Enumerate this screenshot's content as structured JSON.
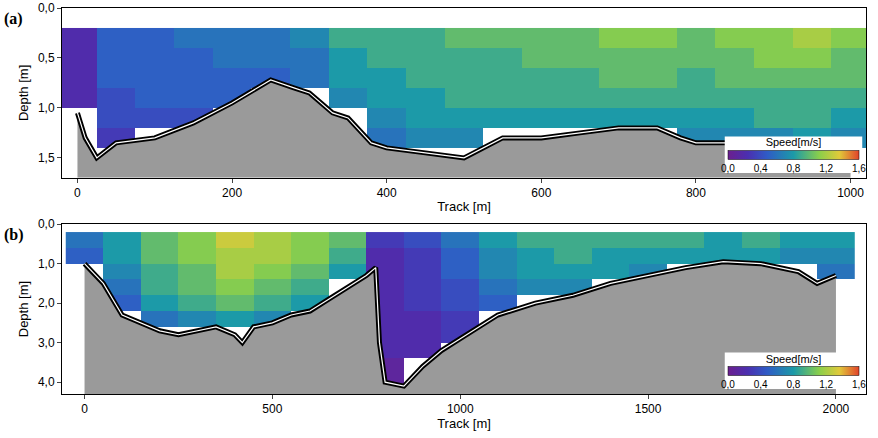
{
  "chart_data": [
    {
      "type": "heatmap",
      "label": "(a)",
      "x_label": "Track [m]",
      "y_label": "Depth [m]",
      "grid": false,
      "x": [
        0,
        50,
        100,
        150,
        200,
        250,
        300,
        350,
        400,
        450,
        500,
        550,
        600,
        650,
        700,
        750,
        800,
        850,
        900,
        950,
        1000
      ],
      "y": [
        0.3,
        0.5,
        0.7,
        0.9,
        1.1,
        1.3
      ],
      "cells": [
        [
          0.2,
          0.2,
          0.2,
          0.2,
          null,
          null
        ],
        [
          0.5,
          0.5,
          0.5,
          0.4,
          0.4,
          0.3
        ],
        [
          0.5,
          0.5,
          0.5,
          0.5,
          0.4,
          null
        ],
        [
          0.6,
          0.5,
          0.5,
          0.5,
          0.4,
          null
        ],
        [
          0.6,
          0.6,
          0.5,
          0.5,
          null,
          null
        ],
        [
          0.6,
          0.6,
          0.5,
          null,
          null,
          null
        ],
        [
          0.7,
          0.6,
          0.6,
          null,
          null,
          null
        ],
        [
          0.9,
          0.8,
          0.8,
          0.7,
          null,
          null
        ],
        [
          0.9,
          0.9,
          0.8,
          0.8,
          0.7,
          0.6
        ],
        [
          0.9,
          0.9,
          0.9,
          0.8,
          0.8,
          0.7
        ],
        [
          1.0,
          0.9,
          0.9,
          0.9,
          0.8,
          0.7
        ],
        [
          1.0,
          0.9,
          0.9,
          0.9,
          0.8,
          null
        ],
        [
          1.0,
          1.0,
          0.9,
          0.9,
          0.8,
          null
        ],
        [
          1.0,
          1.0,
          0.9,
          0.9,
          0.8,
          null
        ],
        [
          1.1,
          1.0,
          1.0,
          0.9,
          0.8,
          null
        ],
        [
          1.1,
          1.0,
          1.0,
          0.9,
          0.8,
          null
        ],
        [
          1.0,
          1.0,
          0.9,
          0.9,
          0.8,
          0.7
        ],
        [
          1.1,
          1.0,
          1.0,
          0.9,
          0.8,
          0.7
        ],
        [
          1.1,
          1.1,
          1.0,
          0.9,
          0.9,
          0.7
        ],
        [
          1.2,
          1.1,
          1.0,
          0.9,
          0.9,
          0.8
        ],
        [
          1.1,
          1.0,
          1.0,
          0.9,
          0.8,
          0.7
        ]
      ],
      "bed": {
        "x": [
          0,
          10,
          25,
          50,
          100,
          150,
          200,
          250,
          280,
          300,
          330,
          350,
          380,
          400,
          450,
          500,
          550,
          600,
          650,
          700,
          750,
          780,
          800,
          850,
          900,
          950,
          1000
        ],
        "depth": [
          1.05,
          1.3,
          1.5,
          1.35,
          1.3,
          1.15,
          0.95,
          0.72,
          0.8,
          0.85,
          1.05,
          1.1,
          1.35,
          1.4,
          1.45,
          1.5,
          1.3,
          1.3,
          1.25,
          1.2,
          1.2,
          1.3,
          1.35,
          1.35,
          1.35,
          1.35,
          1.35
        ]
      },
      "xlim": [
        -20,
        1020
      ],
      "ylim": [
        0,
        1.7
      ],
      "xticks": [
        0,
        200,
        400,
        600,
        800,
        1000
      ],
      "yticks": [
        {
          "value": 0,
          "label": "0,0"
        },
        {
          "value": 0.5,
          "label": "0,5"
        },
        {
          "value": 1.0,
          "label": "1,0"
        },
        {
          "value": 1.5,
          "label": "1,5"
        }
      ],
      "colorbar": {
        "title": "Speed[m/s]",
        "range": [
          0,
          1.6
        ],
        "ticks": [
          {
            "value": 0,
            "label": "0,0"
          },
          {
            "value": 0.4,
            "label": "0,4"
          },
          {
            "value": 0.8,
            "label": "0,8"
          },
          {
            "value": 1.2,
            "label": "1,2"
          },
          {
            "value": 1.6,
            "label": "1,6"
          }
        ]
      }
    },
    {
      "type": "heatmap",
      "label": "(b)",
      "x_label": "Track [m]",
      "y_label": "Depth [m]",
      "grid": false,
      "x": [
        0,
        100,
        200,
        300,
        400,
        500,
        600,
        700,
        800,
        900,
        1000,
        1100,
        1200,
        1300,
        1400,
        1500,
        1600,
        1700,
        1800,
        1900,
        2000
      ],
      "y": [
        0.4,
        0.8,
        1.2,
        1.6,
        2.0,
        2.4,
        2.8,
        3.2,
        3.6,
        4.0
      ],
      "cells": [
        [
          0.6,
          0.5,
          null,
          null,
          null,
          null,
          null,
          null,
          null,
          null
        ],
        [
          0.8,
          0.8,
          0.7,
          0.6,
          0.5,
          null,
          null,
          null,
          null,
          null
        ],
        [
          1.0,
          1.0,
          0.9,
          0.9,
          0.8,
          0.6,
          null,
          null,
          null,
          null
        ],
        [
          1.1,
          1.1,
          1.0,
          1.0,
          0.9,
          0.7,
          null,
          null,
          null,
          null
        ],
        [
          1.3,
          1.2,
          1.2,
          1.1,
          1.0,
          0.8,
          null,
          null,
          null,
          null
        ],
        [
          1.2,
          1.2,
          1.1,
          1.0,
          0.9,
          0.7,
          null,
          null,
          null,
          null
        ],
        [
          1.1,
          1.1,
          1.0,
          0.9,
          0.8,
          null,
          null,
          null,
          null,
          null
        ],
        [
          1.0,
          0.9,
          0.8,
          null,
          null,
          null,
          null,
          null,
          null,
          null
        ],
        [
          0.3,
          0.2,
          0.2,
          0.2,
          0.2,
          0.2,
          0.2,
          0.2,
          0.1,
          0.1
        ],
        [
          0.4,
          0.3,
          0.3,
          0.3,
          0.3,
          0.2,
          0.2,
          0.2,
          null,
          null
        ],
        [
          0.6,
          0.5,
          0.5,
          0.4,
          0.4,
          0.3,
          0.3,
          null,
          null,
          null
        ],
        [
          0.8,
          0.7,
          0.7,
          0.6,
          0.5,
          null,
          null,
          null,
          null,
          null
        ],
        [
          0.9,
          0.8,
          0.8,
          0.7,
          null,
          null,
          null,
          null,
          null,
          null
        ],
        [
          0.9,
          0.9,
          0.8,
          0.7,
          null,
          null,
          null,
          null,
          null,
          null
        ],
        [
          0.9,
          0.8,
          0.8,
          null,
          null,
          null,
          null,
          null,
          null,
          null
        ],
        [
          0.9,
          0.8,
          0.7,
          null,
          null,
          null,
          null,
          null,
          null,
          null
        ],
        [
          0.9,
          0.8,
          null,
          null,
          null,
          null,
          null,
          null,
          null,
          null
        ],
        [
          0.8,
          0.8,
          null,
          null,
          null,
          null,
          null,
          null,
          null,
          null
        ],
        [
          0.9,
          0.8,
          null,
          null,
          null,
          null,
          null,
          null,
          null,
          null
        ],
        [
          0.8,
          0.7,
          null,
          null,
          null,
          null,
          null,
          null,
          null,
          null
        ],
        [
          0.8,
          0.7,
          0.6,
          null,
          null,
          null,
          null,
          null,
          null,
          null
        ]
      ],
      "bed": {
        "x": [
          0,
          50,
          100,
          150,
          200,
          250,
          300,
          350,
          400,
          420,
          450,
          500,
          550,
          600,
          650,
          700,
          750,
          775,
          785,
          800,
          850,
          900,
          950,
          1000,
          1050,
          1100,
          1200,
          1300,
          1400,
          1500,
          1600,
          1700,
          1800,
          1900,
          1950,
          2000
        ],
        "depth": [
          1.0,
          1.5,
          2.3,
          2.5,
          2.7,
          2.8,
          2.7,
          2.6,
          2.8,
          3.0,
          2.6,
          2.5,
          2.3,
          2.2,
          1.9,
          1.6,
          1.3,
          1.1,
          3.0,
          4.0,
          4.1,
          3.6,
          3.2,
          2.9,
          2.6,
          2.3,
          2.0,
          1.8,
          1.5,
          1.3,
          1.1,
          0.95,
          1.0,
          1.2,
          1.5,
          1.3
        ]
      },
      "xlim": [
        -60,
        2080
      ],
      "ylim": [
        0,
        4.3
      ],
      "xticks": [
        0,
        500,
        1000,
        1500,
        2000
      ],
      "yticks": [
        {
          "value": 0,
          "label": "0,0"
        },
        {
          "value": 1,
          "label": "1,0"
        },
        {
          "value": 2,
          "label": "2,0"
        },
        {
          "value": 3,
          "label": "3,0"
        },
        {
          "value": 4,
          "label": "4,0"
        }
      ],
      "colorbar": {
        "title": "Speed[m/s]",
        "range": [
          0,
          1.6
        ],
        "ticks": [
          {
            "value": 0,
            "label": "0,0"
          },
          {
            "value": 0.4,
            "label": "0,4"
          },
          {
            "value": 0.8,
            "label": "0,8"
          },
          {
            "value": 1.2,
            "label": "1,2"
          },
          {
            "value": 1.6,
            "label": "1,6"
          }
        ]
      }
    }
  ]
}
